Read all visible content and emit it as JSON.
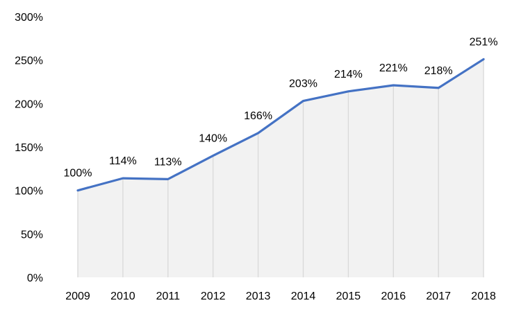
{
  "chart_data": {
    "type": "area",
    "categories": [
      "2009",
      "2010",
      "2011",
      "2012",
      "2013",
      "2014",
      "2015",
      "2016",
      "2017",
      "2018"
    ],
    "series": [
      {
        "values": [
          100,
          114,
          113,
          140,
          166,
          203,
          214,
          221,
          218,
          251
        ],
        "labels": [
          "100%",
          "114%",
          "113%",
          "140%",
          "166%",
          "203%",
          "214%",
          "221%",
          "218%",
          "251%"
        ]
      }
    ],
    "title": "",
    "xlabel": "",
    "ylabel": "",
    "ylim": [
      0,
      300
    ],
    "y_ticks": [
      {
        "value": 0,
        "label": "0%"
      },
      {
        "value": 50,
        "label": "50%"
      },
      {
        "value": 100,
        "label": "100%"
      },
      {
        "value": 150,
        "label": "150%"
      },
      {
        "value": 200,
        "label": "200%"
      },
      {
        "value": 250,
        "label": "250%"
      },
      {
        "value": 300,
        "label": "300%"
      }
    ],
    "grid": false,
    "legend": "none",
    "drop_lines": true,
    "colors": {
      "line": "#4472c4",
      "area": "#f2f2f2",
      "drop_line": "#d9d9d9"
    }
  }
}
